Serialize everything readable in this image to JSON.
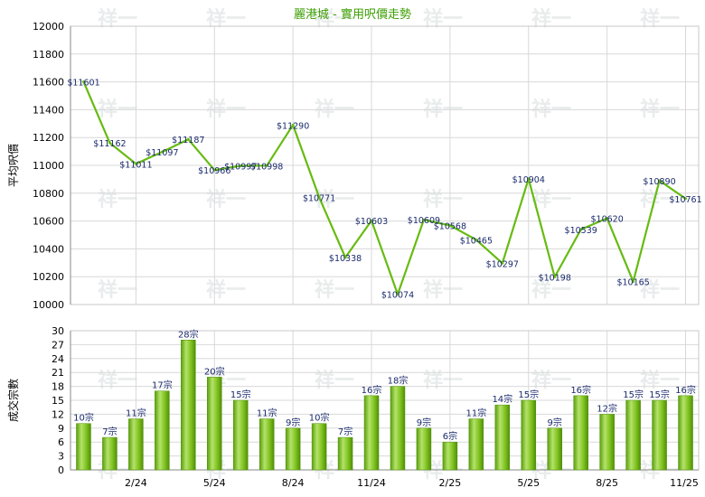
{
  "chart_data": [
    {
      "type": "line",
      "title": "麗港城 - 實用呎價走勢",
      "ylabel": "平均呎價",
      "ylim": [
        10000,
        12000
      ],
      "yticks": [
        10000,
        10200,
        10400,
        10600,
        10800,
        11000,
        11200,
        11400,
        11600,
        11800,
        12000
      ],
      "x_tick_labels": [
        "2/24",
        "5/24",
        "8/24",
        "11/24",
        "2/25",
        "5/25",
        "8/25",
        "11/25"
      ],
      "grid": true,
      "series": [
        {
          "color": "#66bb11",
          "values": [
            11601,
            11162,
            11011,
            11097,
            11187,
            10966,
            10997,
            10998,
            11290,
            10771,
            10338,
            10603,
            10074,
            10609,
            10568,
            10465,
            10297,
            10904,
            10198,
            10539,
            10620,
            10165,
            10890,
            10761
          ],
          "labels": [
            "$11601",
            "$11162",
            "$11011",
            "$11097",
            "$11187",
            "$10966",
            "$10997",
            "$10998",
            "$11290",
            "$10771",
            "$10338",
            "$10603",
            "$10074",
            "$10609",
            "$10568",
            "$10465",
            "$10297",
            "$10904",
            "$10198",
            "$10539",
            "$10620",
            "$10165",
            "$10890",
            "$10761"
          ]
        }
      ]
    },
    {
      "type": "bar",
      "ylabel": "成交宗數",
      "ylim": [
        0,
        30
      ],
      "yticks": [
        0,
        3,
        6,
        9,
        12,
        15,
        18,
        21,
        24,
        27,
        30
      ],
      "x_tick_labels": [
        "2/24",
        "5/24",
        "8/24",
        "11/24",
        "2/25",
        "5/25",
        "8/25",
        "11/25"
      ],
      "grid": true,
      "series": [
        {
          "color": "#66bb11",
          "values": [
            10,
            7,
            11,
            17,
            28,
            20,
            15,
            11,
            9,
            10,
            7,
            16,
            18,
            9,
            6,
            11,
            14,
            15,
            9,
            16,
            12,
            15,
            15,
            16
          ],
          "labels": [
            "10宗",
            "7宗",
            "11宗",
            "17宗",
            "28宗",
            "20宗",
            "15宗",
            "11宗",
            "9宗",
            "10宗",
            "7宗",
            "16宗",
            "18宗",
            "9宗",
            "6宗",
            "11宗",
            "14宗",
            "15宗",
            "9宗",
            "16宗",
            "12宗",
            "15宗",
            "15宗",
            "16宗"
          ]
        }
      ]
    }
  ],
  "watermark_text": "祥一"
}
